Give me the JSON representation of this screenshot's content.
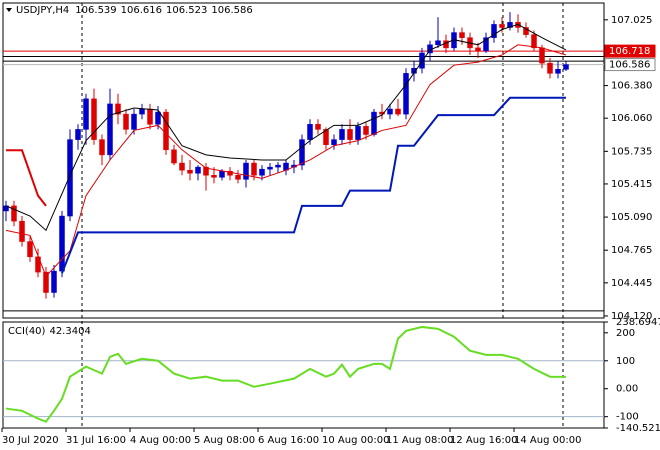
{
  "chart_data": {
    "type": "candlestick",
    "symbol": "USDJPY,H4",
    "up_color": "#0000cc",
    "down_color": "#e00000",
    "candles": {
      "open": [
        105.15,
        105.2,
        105.05,
        104.85,
        104.7,
        104.55,
        104.35,
        104.56,
        105.1,
        105.85,
        105.95,
        106.25,
        105.85,
        105.7,
        106.2,
        106.1,
        105.95,
        106.1,
        106.15,
        106.0,
        106.12,
        105.75,
        105.62,
        105.55,
        105.52,
        105.58,
        105.5,
        105.48,
        105.54,
        105.5,
        105.46,
        105.62,
        105.5,
        105.56,
        105.58,
        105.55,
        105.58,
        105.6,
        105.85,
        106.0,
        105.95,
        105.8,
        105.85,
        105.95,
        105.85,
        105.98,
        105.9,
        106.12,
        106.1,
        106.15,
        106.1,
        106.5,
        106.55,
        106.7,
        106.78,
        106.82,
        106.75,
        106.9,
        106.85,
        106.75,
        106.72,
        106.85,
        106.98,
        106.95,
        107.0,
        106.95,
        106.88,
        106.75,
        106.6,
        106.5,
        106.539
      ],
      "high": [
        105.25,
        105.25,
        105.1,
        104.9,
        104.78,
        104.6,
        104.62,
        105.15,
        105.95,
        106.0,
        106.3,
        106.35,
        105.9,
        106.35,
        106.3,
        106.15,
        106.15,
        106.2,
        106.2,
        106.18,
        106.15,
        105.8,
        105.7,
        105.65,
        105.6,
        105.62,
        105.58,
        105.56,
        105.58,
        105.55,
        105.65,
        105.65,
        105.6,
        105.62,
        105.63,
        105.65,
        105.65,
        105.9,
        106.05,
        106.05,
        105.97,
        105.9,
        106.0,
        106.05,
        106.02,
        106.02,
        106.15,
        106.2,
        106.2,
        106.25,
        106.55,
        106.62,
        106.75,
        106.82,
        107.05,
        106.88,
        106.95,
        106.95,
        106.9,
        106.8,
        106.9,
        107.02,
        107.05,
        107.1,
        107.08,
        107.0,
        106.92,
        106.78,
        106.65,
        106.62,
        106.616
      ],
      "low": [
        105.05,
        105.0,
        104.8,
        104.65,
        104.5,
        104.29,
        104.3,
        104.5,
        105.05,
        105.75,
        105.8,
        105.8,
        105.6,
        105.65,
        106.0,
        105.9,
        105.9,
        106.05,
        105.95,
        105.95,
        105.7,
        105.6,
        105.5,
        105.45,
        105.45,
        105.35,
        105.42,
        105.45,
        105.45,
        105.42,
        105.38,
        105.45,
        105.45,
        105.5,
        105.52,
        105.5,
        105.52,
        105.55,
        105.8,
        105.9,
        105.75,
        105.75,
        105.8,
        105.8,
        105.8,
        105.85,
        105.88,
        106.05,
        106.05,
        106.08,
        106.05,
        106.42,
        106.5,
        106.62,
        106.75,
        106.7,
        106.72,
        106.78,
        106.68,
        106.65,
        106.7,
        106.8,
        106.9,
        106.92,
        106.9,
        106.85,
        106.72,
        106.55,
        106.45,
        106.45,
        106.523
      ],
      "close": [
        105.2,
        105.05,
        104.85,
        104.7,
        104.55,
        104.35,
        104.56,
        105.1,
        105.85,
        105.95,
        106.25,
        105.85,
        105.7,
        106.2,
        106.1,
        105.95,
        106.1,
        106.15,
        106.0,
        106.12,
        105.75,
        105.62,
        105.55,
        105.52,
        105.58,
        105.5,
        105.48,
        105.54,
        105.5,
        105.46,
        105.62,
        105.5,
        105.56,
        105.58,
        105.6,
        105.62,
        105.6,
        105.85,
        106.0,
        105.95,
        105.8,
        105.85,
        105.95,
        105.85,
        105.98,
        105.9,
        106.12,
        106.1,
        106.15,
        106.1,
        106.5,
        106.55,
        106.7,
        106.78,
        106.82,
        106.75,
        106.9,
        106.85,
        106.75,
        106.72,
        106.85,
        106.98,
        106.95,
        107.0,
        106.95,
        106.88,
        106.75,
        106.6,
        106.5,
        106.54,
        106.586
      ]
    },
    "overlays": [
      {
        "color": "#000000",
        "width": 1,
        "x": [
          0,
          3,
          5,
          8,
          10,
          13,
          16,
          19,
          22,
          25,
          28,
          32,
          35,
          38,
          41,
          44,
          47,
          50,
          53,
          56,
          59,
          62,
          64,
          67,
          70
        ],
        "values": [
          105.2,
          105.1,
          104.96,
          105.5,
          105.84,
          106.09,
          106.16,
          106.14,
          105.79,
          105.7,
          105.67,
          105.65,
          105.65,
          105.84,
          105.99,
          105.99,
          106.09,
          106.39,
          106.73,
          106.83,
          106.78,
          106.93,
          106.98,
          106.85,
          106.73
        ]
      },
      {
        "color": "#e00000",
        "width": 1,
        "x": [
          0,
          3,
          5,
          8,
          10,
          13,
          16,
          19,
          22,
          25,
          28,
          32,
          35,
          38,
          41,
          44,
          47,
          50,
          53,
          56,
          59,
          62,
          64,
          67,
          70
        ],
        "values": [
          104.96,
          104.91,
          104.51,
          104.76,
          105.3,
          105.65,
          105.94,
          105.99,
          105.75,
          105.57,
          105.53,
          105.47,
          105.55,
          105.65,
          105.79,
          105.84,
          105.94,
          105.99,
          106.39,
          106.58,
          106.61,
          106.68,
          106.78,
          106.75,
          106.68
        ]
      },
      {
        "color": "#e00000",
        "width": 2,
        "x": [
          0,
          2,
          4,
          5
        ],
        "values": [
          105.745,
          105.745,
          105.3,
          105.2
        ]
      },
      {
        "color": "#0018b8",
        "width": 2,
        "x": [
          7,
          9,
          36,
          37,
          42,
          43,
          48,
          49,
          51,
          54,
          61,
          63,
          70
        ],
        "values": [
          104.54,
          104.94,
          104.94,
          105.2,
          105.2,
          105.35,
          105.35,
          105.79,
          105.79,
          106.09,
          106.09,
          106.26,
          106.26
        ]
      }
    ],
    "hlines": [
      {
        "value": 106.718,
        "color": "#e00000",
        "tag": true
      },
      {
        "value": 106.586,
        "color": "#b8b8b8",
        "tag": true
      },
      {
        "value": 106.665,
        "color": "#000000",
        "tag": false
      },
      {
        "value": 106.62,
        "color": "#000000",
        "tag": false
      },
      {
        "value": 104.17,
        "color": "#000000",
        "tag": false
      }
    ],
    "ylim": [
      104.1,
      107.19
    ],
    "yticks": [
      107.025,
      {
        "value": 106.38,
        "label": "106.380"
      },
      {
        "value": 106.06,
        "label": "106.060"
      },
      105.735,
      105.415,
      {
        "value": 105.09,
        "label": "105.090"
      },
      104.765,
      104.445,
      {
        "value": 104.12,
        "label": "104.120"
      }
    ],
    "xlim": [
      0,
      70
    ],
    "xticks": [
      {
        "value": 0,
        "label": "30 Jul 2020"
      },
      {
        "value": 8,
        "label": "31 Jul 16:00"
      },
      {
        "value": 16,
        "label": "4 Aug 00:00"
      },
      {
        "value": 24,
        "label": "5 Aug 08:00"
      },
      {
        "value": 32,
        "label": "6 Aug 16:00"
      },
      {
        "value": 40,
        "label": "10 Aug 00:00"
      },
      {
        "value": 48,
        "label": "11 Aug 08:00"
      },
      {
        "value": 56,
        "label": "12 Aug 16:00"
      },
      {
        "value": 64,
        "label": "14 Aug 00:00"
      }
    ],
    "indicator": {
      "name": "CCI(40)",
      "color": "#66dd22",
      "x": [
        0,
        2,
        4,
        5,
        6,
        7,
        8,
        10,
        12,
        13,
        14,
        15,
        17,
        19,
        21,
        23,
        25,
        27,
        29,
        31,
        33,
        36,
        38,
        40,
        41,
        42,
        43,
        44,
        46,
        47,
        48,
        49,
        50,
        52,
        54,
        56,
        58,
        60,
        62,
        64,
        66,
        68,
        70
      ],
      "values": [
        -71,
        -79,
        -107,
        -118,
        -79,
        -36,
        43,
        79,
        54,
        114,
        125,
        89,
        107,
        100,
        54,
        36,
        43,
        29,
        29,
        7,
        18,
        36,
        71,
        43,
        54,
        86,
        43,
        71,
        89,
        89,
        71,
        179,
        207,
        221,
        214,
        186,
        136,
        121,
        121,
        107,
        71,
        43,
        42.3404
      ],
      "ylim": [
        -140.5215,
        238.6947
      ],
      "yticks": [
        238.6947,
        200,
        100,
        {
          "value": 0,
          "label": "0.00"
        },
        -100,
        -140.5215
      ],
      "levels": [
        100,
        -100
      ]
    }
  }
}
